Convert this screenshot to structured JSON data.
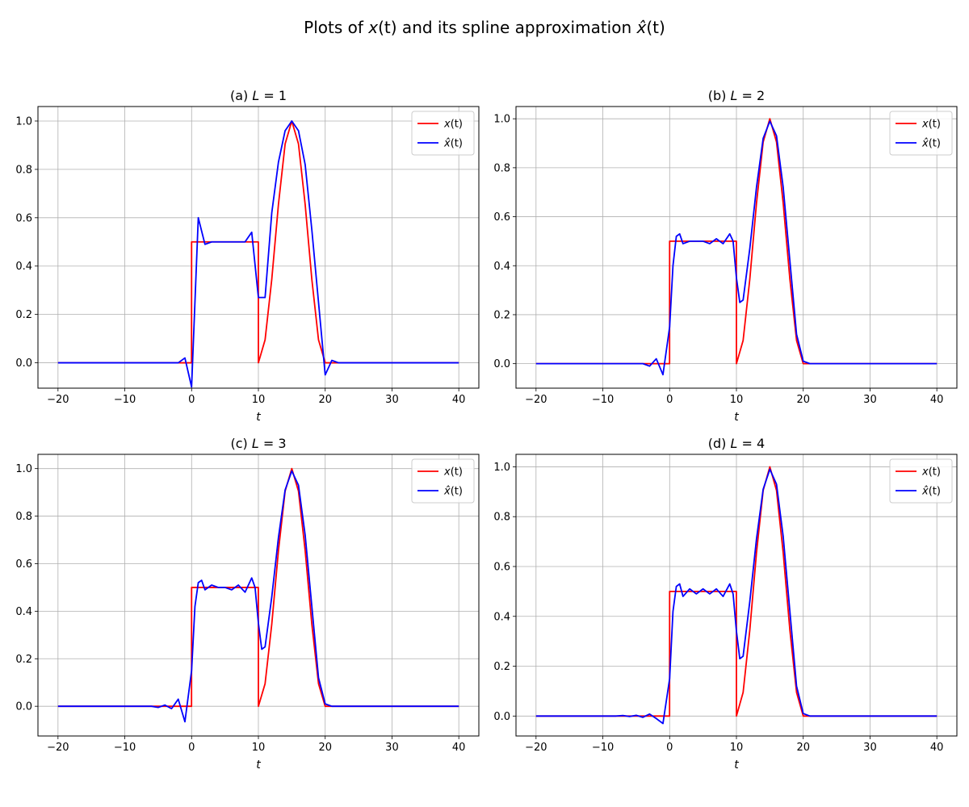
{
  "figure": {
    "suptitle_prefix": "Plots of ",
    "suptitle_x": "x",
    "suptitle_t1": "(t)",
    "suptitle_mid": " and its spline approximation ",
    "suptitle_xhat": "x̂",
    "suptitle_t2": "(t)"
  },
  "colors": {
    "signal": "#ff0000",
    "approx": "#0000ff",
    "grid": "#b0b0b0",
    "axis": "#000000"
  },
  "chart_data": [
    {
      "type": "line",
      "title_prefix": "(a) ",
      "title_var": "L",
      "title_value": " = 1",
      "xlabel": "t",
      "xlim": [
        -23,
        43
      ],
      "ylim": [
        -0.105,
        1.06
      ],
      "xticks": [
        -20,
        -10,
        0,
        10,
        20,
        30,
        40
      ],
      "yticks": [
        0.0,
        0.2,
        0.4,
        0.6,
        0.8,
        1.0
      ],
      "legend": {
        "position": "top-right",
        "entries": [
          "x(t)",
          "x̂(t)"
        ]
      },
      "grid": true,
      "series": [
        {
          "name": "x(t)",
          "x": [
            -20,
            -0.01,
            0,
            9.99,
            10,
            11,
            12,
            13,
            14,
            15,
            16,
            17,
            18,
            19,
            20,
            20.01,
            40
          ],
          "y": [
            0,
            0,
            0.5,
            0.5,
            0,
            0.095,
            0.345,
            0.655,
            0.905,
            1.0,
            0.905,
            0.655,
            0.345,
            0.095,
            0,
            0,
            0
          ]
        },
        {
          "name": "x̂(t)",
          "x": [
            -20,
            -3,
            -2,
            -1,
            0,
            1,
            2,
            3,
            4,
            5,
            6,
            7,
            8,
            9,
            10,
            11,
            12,
            13,
            14,
            15,
            16,
            17,
            18,
            19,
            20,
            21,
            22,
            23,
            40
          ],
          "y": [
            0,
            0,
            0,
            0.02,
            -0.1,
            0.6,
            0.49,
            0.5,
            0.5,
            0.5,
            0.5,
            0.5,
            0.5,
            0.54,
            0.27,
            0.27,
            0.62,
            0.83,
            0.96,
            1.0,
            0.96,
            0.82,
            0.55,
            0.25,
            -0.05,
            0.01,
            0,
            0,
            0
          ]
        }
      ]
    },
    {
      "type": "line",
      "title_prefix": "(b) ",
      "title_var": "L",
      "title_value": " = 2",
      "xlabel": "t",
      "xlim": [
        -23,
        43
      ],
      "ylim": [
        -0.1,
        1.05
      ],
      "xticks": [
        -20,
        -10,
        0,
        10,
        20,
        30,
        40
      ],
      "yticks": [
        0.0,
        0.2,
        0.4,
        0.6,
        0.8,
        1.0
      ],
      "legend": {
        "position": "top-right",
        "entries": [
          "x(t)",
          "x̂(t)"
        ]
      },
      "grid": true,
      "series": [
        {
          "name": "x(t)",
          "x": [
            -20,
            -0.01,
            0,
            9.99,
            10,
            11,
            12,
            13,
            14,
            15,
            16,
            17,
            18,
            19,
            20,
            20.01,
            40
          ],
          "y": [
            0,
            0,
            0.5,
            0.5,
            0,
            0.095,
            0.345,
            0.655,
            0.905,
            1.0,
            0.905,
            0.655,
            0.345,
            0.095,
            0,
            0,
            0
          ]
        },
        {
          "name": "x̂(t)",
          "x": [
            -20,
            -5,
            -4,
            -3,
            -2,
            -1,
            0,
            0.5,
            1,
            1.5,
            2,
            3,
            4,
            5,
            6,
            7,
            8,
            9,
            9.5,
            10,
            10.5,
            11,
            12,
            13,
            14,
            15,
            16,
            17,
            18,
            19,
            20,
            21,
            22,
            40
          ],
          "y": [
            0,
            0,
            0,
            -0.01,
            0.02,
            -0.045,
            0.15,
            0.4,
            0.52,
            0.53,
            0.49,
            0.5,
            0.5,
            0.5,
            0.49,
            0.51,
            0.49,
            0.53,
            0.5,
            0.35,
            0.25,
            0.26,
            0.47,
            0.72,
            0.92,
            0.99,
            0.93,
            0.72,
            0.42,
            0.12,
            0.01,
            0,
            0,
            0
          ]
        }
      ]
    },
    {
      "type": "line",
      "title_prefix": "(c) ",
      "title_var": "L",
      "title_value": " = 3",
      "xlabel": "t",
      "xlim": [
        -23,
        43
      ],
      "ylim": [
        -0.125,
        1.06
      ],
      "xticks": [
        -20,
        -10,
        0,
        10,
        20,
        30,
        40
      ],
      "yticks": [
        0.0,
        0.2,
        0.4,
        0.6,
        0.8,
        1.0
      ],
      "legend": {
        "position": "top-right",
        "entries": [
          "x(t)",
          "x̂(t)"
        ]
      },
      "grid": true,
      "series": [
        {
          "name": "x(t)",
          "x": [
            -20,
            -0.01,
            0,
            9.99,
            10,
            11,
            12,
            13,
            14,
            15,
            16,
            17,
            18,
            19,
            20,
            20.01,
            40
          ],
          "y": [
            0,
            0,
            0.5,
            0.5,
            0,
            0.095,
            0.345,
            0.655,
            0.905,
            1.0,
            0.905,
            0.655,
            0.345,
            0.095,
            0,
            0,
            0
          ]
        },
        {
          "name": "x̂(t)",
          "x": [
            -20,
            -7,
            -6,
            -5,
            -4,
            -3,
            -2,
            -1,
            0,
            0.5,
            1,
            1.5,
            2,
            3,
            4,
            5,
            6,
            7,
            8,
            9,
            9.5,
            10,
            10.5,
            11,
            12,
            13,
            14,
            15,
            16,
            17,
            18,
            19,
            20,
            21,
            22,
            40
          ],
          "y": [
            0,
            0,
            0,
            -0.005,
            0.005,
            -0.01,
            0.03,
            -0.065,
            0.15,
            0.42,
            0.52,
            0.53,
            0.49,
            0.51,
            0.5,
            0.5,
            0.49,
            0.51,
            0.48,
            0.54,
            0.5,
            0.35,
            0.24,
            0.25,
            0.46,
            0.71,
            0.91,
            0.99,
            0.93,
            0.72,
            0.42,
            0.12,
            0.01,
            0,
            0,
            0
          ]
        }
      ]
    },
    {
      "type": "line",
      "title_prefix": "(d) ",
      "title_var": "L",
      "title_value": " = 4",
      "xlabel": "t",
      "xlim": [
        -23,
        43
      ],
      "ylim": [
        -0.08,
        1.05
      ],
      "xticks": [
        -20,
        -10,
        0,
        10,
        20,
        30,
        40
      ],
      "yticks": [
        0.0,
        0.2,
        0.4,
        0.6,
        0.8,
        1.0
      ],
      "legend": {
        "position": "top-right",
        "entries": [
          "x(t)",
          "x̂(t)"
        ]
      },
      "grid": true,
      "series": [
        {
          "name": "x(t)",
          "x": [
            -20,
            -0.01,
            0,
            9.99,
            10,
            11,
            12,
            13,
            14,
            15,
            16,
            17,
            18,
            19,
            20,
            20.01,
            40
          ],
          "y": [
            0,
            0,
            0.5,
            0.5,
            0,
            0.095,
            0.345,
            0.655,
            0.905,
            1.0,
            0.905,
            0.655,
            0.345,
            0.095,
            0,
            0,
            0
          ]
        },
        {
          "name": "x̂(t)",
          "x": [
            -20,
            -8,
            -7,
            -6,
            -5,
            -4,
            -3,
            -2,
            -1,
            0,
            0.5,
            1,
            1.5,
            2,
            3,
            4,
            5,
            6,
            7,
            8,
            9,
            9.5,
            10,
            10.5,
            11,
            12,
            13,
            14,
            15,
            16,
            17,
            18,
            19,
            20,
            21,
            22,
            40
          ],
          "y": [
            0,
            0,
            0.002,
            -0.002,
            0.003,
            -0.005,
            0.008,
            -0.01,
            -0.03,
            0.15,
            0.42,
            0.52,
            0.53,
            0.48,
            0.51,
            0.49,
            0.51,
            0.49,
            0.51,
            0.48,
            0.53,
            0.49,
            0.34,
            0.23,
            0.24,
            0.46,
            0.71,
            0.91,
            0.99,
            0.93,
            0.72,
            0.42,
            0.12,
            0.01,
            0,
            0,
            0
          ]
        }
      ]
    }
  ]
}
